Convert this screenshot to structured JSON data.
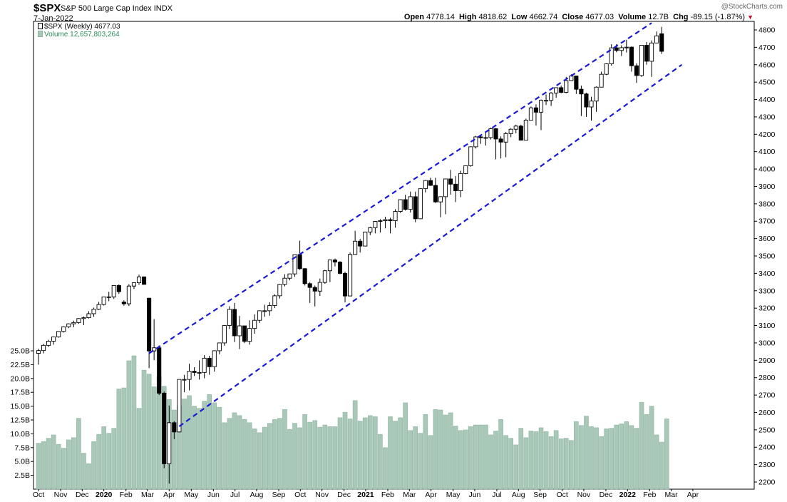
{
  "header": {
    "symbol": "$SPX",
    "name": "S&P 500 Large Cap Index",
    "exchange": "INDX",
    "date": "7-Jan-2022",
    "watermark": "@StockCharts.com",
    "open_label": "Open",
    "open_value": "4778.14",
    "high_label": "High",
    "high_value": "4818.62",
    "low_label": "Low",
    "low_value": "4662.74",
    "close_label": "Close",
    "close_value": "4677.03",
    "volume_label": "Volume",
    "volume_value": "12.7B",
    "chg_label": "Chg",
    "chg_value": "-89.15 (-1.87%)",
    "chg_arrow": "▼"
  },
  "legend": {
    "price_line": "$SPX (Weekly) 4677.03",
    "volume_line": "Volume 12,657,803,264"
  },
  "chart_data": {
    "type": "candlestick",
    "timeframe": "weekly",
    "price_axis": {
      "side": "right",
      "ylim": [
        2180,
        4840
      ],
      "ticks": [
        2200,
        2300,
        2400,
        2500,
        2600,
        2700,
        2800,
        2900,
        3000,
        3100,
        3200,
        3300,
        3400,
        3500,
        3600,
        3700,
        3800,
        3900,
        4000,
        4100,
        4200,
        4300,
        4400,
        4500,
        4600,
        4700,
        4800
      ]
    },
    "volume_axis": {
      "side": "left",
      "ylim": [
        0,
        26.5
      ],
      "ticks": [
        "2.5B",
        "5.0B",
        "7.5B",
        "10.0B",
        "12.5B",
        "15.0B",
        "17.5B",
        "20.0B",
        "22.5B",
        "25.0B"
      ],
      "tick_values": [
        2.5,
        5,
        7.5,
        10,
        12.5,
        15,
        17.5,
        20,
        22.5,
        25
      ]
    },
    "x_axis": {
      "labels": [
        "Oct",
        "Nov",
        "Dec",
        "2020",
        "Feb",
        "Mar",
        "Apr",
        "May",
        "Jun",
        "Jul",
        "Aug",
        "Sep",
        "Oct",
        "Nov",
        "Dec",
        "2021",
        "Feb",
        "Mar",
        "Apr",
        "May",
        "Jun",
        "Jul",
        "Aug",
        "Sep",
        "Oct",
        "Nov",
        "Dec",
        "2022",
        "Feb",
        "Mar",
        "Apr"
      ],
      "label_week_index": [
        0,
        4.4,
        8.7,
        13,
        17.4,
        21.7,
        26,
        30.4,
        34.8,
        39.1,
        43.4,
        47.8,
        52.1,
        56.4,
        60.8,
        65.1,
        69.5,
        73.8,
        78.1,
        82.5,
        86.8,
        91.2,
        95.5,
        99.8,
        104.2,
        108.5,
        112.9,
        117.2,
        121.6,
        125.9,
        130.2
      ],
      "bold": [
        "2020",
        "2021",
        "2022"
      ]
    },
    "candles": [
      {
        "o": 2940,
        "h": 2967,
        "l": 2875,
        "c": 2956
      },
      {
        "o": 2956,
        "h": 2995,
        "l": 2940,
        "c": 2986
      },
      {
        "o": 2986,
        "h": 3018,
        "l": 2977,
        "c": 3010
      },
      {
        "o": 3010,
        "h": 3037,
        "l": 2990,
        "c": 3035
      },
      {
        "o": 3035,
        "h": 3066,
        "l": 3030,
        "c": 3066
      },
      {
        "o": 3066,
        "h": 3096,
        "l": 3060,
        "c": 3093
      },
      {
        "o": 3093,
        "h": 3112,
        "l": 3085,
        "c": 3110
      },
      {
        "o": 3110,
        "h": 3128,
        "l": 3090,
        "c": 3117
      },
      {
        "o": 3117,
        "h": 3142,
        "l": 3110,
        "c": 3140
      },
      {
        "o": 3140,
        "h": 3152,
        "l": 3102,
        "c": 3145
      },
      {
        "o": 3145,
        "h": 3182,
        "l": 3140,
        "c": 3168
      },
      {
        "o": 3168,
        "h": 3203,
        "l": 3150,
        "c": 3194
      },
      {
        "o": 3194,
        "h": 3236,
        "l": 3190,
        "c": 3221
      },
      {
        "o": 3221,
        "h": 3266,
        "l": 3215,
        "c": 3265
      },
      {
        "o": 3265,
        "h": 3294,
        "l": 3240,
        "c": 3265
      },
      {
        "o": 3265,
        "h": 3330,
        "l": 3253,
        "c": 3330
      },
      {
        "o": 3330,
        "h": 3337,
        "l": 3282,
        "c": 3295
      },
      {
        "o": 3235,
        "h": 3245,
        "l": 3214,
        "c": 3225
      },
      {
        "o": 3225,
        "h": 3338,
        "l": 3212,
        "c": 3327
      },
      {
        "o": 3327,
        "h": 3348,
        "l": 3310,
        "c": 3346
      },
      {
        "o": 3346,
        "h": 3393,
        "l": 3334,
        "c": 3380
      },
      {
        "o": 3380,
        "h": 3382,
        "l": 3335,
        "c": 3337
      },
      {
        "o": 3257,
        "h": 3260,
        "l": 2855,
        "c": 2954
      },
      {
        "o": 2954,
        "h": 3137,
        "l": 2901,
        "c": 2972
      },
      {
        "o": 2972,
        "h": 2985,
        "l": 2700,
        "c": 2711
      },
      {
        "o": 2711,
        "h": 2720,
        "l": 2280,
        "c": 2305
      },
      {
        "o": 2305,
        "h": 2640,
        "l": 2191,
        "c": 2541
      },
      {
        "o": 2541,
        "h": 2550,
        "l": 2447,
        "c": 2488
      },
      {
        "o": 2488,
        "h": 2790,
        "l": 2485,
        "c": 2790
      },
      {
        "o": 2790,
        "h": 2816,
        "l": 2717,
        "c": 2790
      },
      {
        "o": 2790,
        "h": 2880,
        "l": 2727,
        "c": 2837
      },
      {
        "o": 2837,
        "h": 2860,
        "l": 2810,
        "c": 2830
      },
      {
        "o": 2830,
        "h": 2900,
        "l": 2789,
        "c": 2830
      },
      {
        "o": 2830,
        "h": 2930,
        "l": 2797,
        "c": 2912
      },
      {
        "o": 2912,
        "h": 2926,
        "l": 2817,
        "c": 2863
      },
      {
        "o": 2863,
        "h": 2955,
        "l": 2835,
        "c": 2955
      },
      {
        "o": 2955,
        "h": 3000,
        "l": 2935,
        "c": 3000
      },
      {
        "o": 3000,
        "h": 3100,
        "l": 2984,
        "c": 3100
      },
      {
        "o": 3100,
        "h": 3211,
        "l": 3080,
        "c": 3193
      },
      {
        "o": 3193,
        "h": 3230,
        "l": 3005,
        "c": 3041
      },
      {
        "o": 3041,
        "h": 3155,
        "l": 2965,
        "c": 3098
      },
      {
        "o": 3098,
        "h": 3099,
        "l": 2999,
        "c": 3009
      },
      {
        "o": 3009,
        "h": 3130,
        "l": 2990,
        "c": 3083
      },
      {
        "o": 3083,
        "h": 3165,
        "l": 3053,
        "c": 3130
      },
      {
        "o": 3130,
        "h": 3186,
        "l": 3115,
        "c": 3185
      },
      {
        "o": 3185,
        "h": 3220,
        "l": 3150,
        "c": 3185
      },
      {
        "o": 3185,
        "h": 3234,
        "l": 3156,
        "c": 3215
      },
      {
        "o": 3215,
        "h": 3280,
        "l": 3200,
        "c": 3271
      },
      {
        "o": 3271,
        "h": 3340,
        "l": 3255,
        "c": 3337
      },
      {
        "o": 3337,
        "h": 3395,
        "l": 3325,
        "c": 3372
      },
      {
        "o": 3372,
        "h": 3398,
        "l": 3360,
        "c": 3397
      },
      {
        "o": 3397,
        "h": 3500,
        "l": 3380,
        "c": 3508
      },
      {
        "o": 3508,
        "h": 3588,
        "l": 3420,
        "c": 3427
      },
      {
        "o": 3427,
        "h": 3430,
        "l": 3330,
        "c": 3341
      },
      {
        "o": 3341,
        "h": 3350,
        "l": 3230,
        "c": 3319
      },
      {
        "o": 3319,
        "h": 3330,
        "l": 3210,
        "c": 3298
      },
      {
        "o": 3298,
        "h": 3370,
        "l": 3270,
        "c": 3348
      },
      {
        "o": 3348,
        "h": 3420,
        "l": 3340,
        "c": 3415
      },
      {
        "o": 3415,
        "h": 3480,
        "l": 3350,
        "c": 3477
      },
      {
        "o": 3477,
        "h": 3485,
        "l": 3440,
        "c": 3465
      },
      {
        "o": 3465,
        "h": 3470,
        "l": 3395,
        "c": 3400
      },
      {
        "o": 3400,
        "h": 3410,
        "l": 3233,
        "c": 3270
      },
      {
        "o": 3270,
        "h": 3520,
        "l": 3270,
        "c": 3509
      },
      {
        "o": 3509,
        "h": 3645,
        "l": 3510,
        "c": 3585
      },
      {
        "o": 3585,
        "h": 3598,
        "l": 3520,
        "c": 3557
      },
      {
        "o": 3557,
        "h": 3640,
        "l": 3560,
        "c": 3638
      },
      {
        "o": 3638,
        "h": 3668,
        "l": 3620,
        "c": 3663
      },
      {
        "o": 3663,
        "h": 3699,
        "l": 3630,
        "c": 3699
      },
      {
        "o": 3699,
        "h": 3712,
        "l": 3635,
        "c": 3703
      },
      {
        "o": 3703,
        "h": 3726,
        "l": 3659,
        "c": 3709
      },
      {
        "o": 3709,
        "h": 3720,
        "l": 3630,
        "c": 3703
      },
      {
        "o": 3703,
        "h": 3769,
        "l": 3663,
        "c": 3756
      },
      {
        "o": 3756,
        "h": 3826,
        "l": 3748,
        "c": 3824
      },
      {
        "o": 3824,
        "h": 3852,
        "l": 3761,
        "c": 3768
      },
      {
        "o": 3768,
        "h": 3870,
        "l": 3750,
        "c": 3841
      },
      {
        "o": 3841,
        "h": 3870,
        "l": 3694,
        "c": 3714
      },
      {
        "o": 3714,
        "h": 3887,
        "l": 3714,
        "c": 3887
      },
      {
        "o": 3887,
        "h": 3937,
        "l": 3866,
        "c": 3934
      },
      {
        "o": 3934,
        "h": 3950,
        "l": 3903,
        "c": 3906
      },
      {
        "o": 3906,
        "h": 3950,
        "l": 3805,
        "c": 3811
      },
      {
        "o": 3811,
        "h": 3820,
        "l": 3723,
        "c": 3841
      },
      {
        "o": 3841,
        "h": 3940,
        "l": 3740,
        "c": 3943
      },
      {
        "o": 3943,
        "h": 3995,
        "l": 3853,
        "c": 3913
      },
      {
        "o": 3913,
        "h": 3960,
        "l": 3810,
        "c": 3875
      },
      {
        "o": 3875,
        "h": 3990,
        "l": 3838,
        "c": 3974
      },
      {
        "o": 3974,
        "h": 4020,
        "l": 3970,
        "c": 4019
      },
      {
        "o": 4019,
        "h": 4130,
        "l": 4013,
        "c": 4128
      },
      {
        "o": 4128,
        "h": 4191,
        "l": 4118,
        "c": 4185
      },
      {
        "o": 4185,
        "h": 4194,
        "l": 4145,
        "c": 4180
      },
      {
        "o": 4180,
        "h": 4218,
        "l": 4135,
        "c": 4181
      },
      {
        "o": 4181,
        "h": 4238,
        "l": 4170,
        "c": 4232
      },
      {
        "o": 4232,
        "h": 4236,
        "l": 4056,
        "c": 4173
      },
      {
        "o": 4173,
        "h": 4188,
        "l": 4061,
        "c": 4155
      },
      {
        "o": 4155,
        "h": 4213,
        "l": 4068,
        "c": 4204
      },
      {
        "o": 4204,
        "h": 4234,
        "l": 4183,
        "c": 4229
      },
      {
        "o": 4229,
        "h": 4255,
        "l": 4206,
        "c": 4247
      },
      {
        "o": 4247,
        "h": 4255,
        "l": 4164,
        "c": 4166
      },
      {
        "o": 4166,
        "h": 4290,
        "l": 4165,
        "c": 4281
      },
      {
        "o": 4281,
        "h": 4360,
        "l": 4285,
        "c": 4352
      },
      {
        "o": 4352,
        "h": 4372,
        "l": 4250,
        "c": 4327
      },
      {
        "o": 4327,
        "h": 4400,
        "l": 4224,
        "c": 4395
      },
      {
        "o": 4395,
        "h": 4429,
        "l": 4368,
        "c": 4395
      },
      {
        "o": 4395,
        "h": 4443,
        "l": 4363,
        "c": 4437
      },
      {
        "o": 4437,
        "h": 4450,
        "l": 4410,
        "c": 4468
      },
      {
        "o": 4468,
        "h": 4480,
        "l": 4436,
        "c": 4441
      },
      {
        "o": 4441,
        "h": 4530,
        "l": 4436,
        "c": 4509
      },
      {
        "o": 4509,
        "h": 4545,
        "l": 4510,
        "c": 4535
      },
      {
        "o": 4535,
        "h": 4536,
        "l": 4432,
        "c": 4459
      },
      {
        "o": 4459,
        "h": 4480,
        "l": 4305,
        "c": 4432
      },
      {
        "o": 4432,
        "h": 4439,
        "l": 4300,
        "c": 4357
      },
      {
        "o": 4357,
        "h": 4416,
        "l": 4278,
        "c": 4391
      },
      {
        "o": 4391,
        "h": 4475,
        "l": 4329,
        "c": 4471
      },
      {
        "o": 4471,
        "h": 4560,
        "l": 4470,
        "c": 4545
      },
      {
        "o": 4545,
        "h": 4608,
        "l": 4540,
        "c": 4605
      },
      {
        "o": 4605,
        "h": 4718,
        "l": 4595,
        "c": 4697
      },
      {
        "o": 4697,
        "h": 4718,
        "l": 4672,
        "c": 4682
      },
      {
        "o": 4682,
        "h": 4712,
        "l": 4650,
        "c": 4698
      },
      {
        "o": 4698,
        "h": 4744,
        "l": 4670,
        "c": 4701
      },
      {
        "o": 4701,
        "h": 4705,
        "l": 4560,
        "c": 4594
      },
      {
        "o": 4594,
        "h": 4608,
        "l": 4495,
        "c": 4538
      },
      {
        "o": 4538,
        "h": 4713,
        "l": 4530,
        "c": 4712
      },
      {
        "o": 4712,
        "h": 4731,
        "l": 4600,
        "c": 4620
      },
      {
        "o": 4620,
        "h": 4740,
        "l": 4530,
        "c": 4725
      },
      {
        "o": 4725,
        "h": 4791,
        "l": 4728,
        "c": 4766
      },
      {
        "o": 4778,
        "h": 4818,
        "l": 4662,
        "c": 4677
      }
    ],
    "volume": [
      8.3,
      8.6,
      9.2,
      9.8,
      8.1,
      7.4,
      8.9,
      9.3,
      12.8,
      6.5,
      4.6,
      8.6,
      9.9,
      11.3,
      10.1,
      11.0,
      18.1,
      18.3,
      23.2,
      24.1,
      14.6,
      21.5,
      20.8,
      18.5,
      20.4,
      18.6,
      16.2,
      14.3,
      15.1,
      16.3,
      16.9,
      15.0,
      14.6,
      15.9,
      17.1,
      15.6,
      14.8,
      12.0,
      12.8,
      13.8,
      13.3,
      12.6,
      12.0,
      10.9,
      10.2,
      11.2,
      11.9,
      12.6,
      12.8,
      14.4,
      10.8,
      11.9,
      11.1,
      13.5,
      12.1,
      12.4,
      11.2,
      11.6,
      11.3,
      11.3,
      12.9,
      13.9,
      12.7,
      16.0,
      12.3,
      12.9,
      13.3,
      13.1,
      9.9,
      7.5,
      13.1,
      12.3,
      12.9,
      15.6,
      10.6,
      11.3,
      10.1,
      13.5,
      9.7,
      14.4,
      14.3,
      13.4,
      13.8,
      11.4,
      10.6,
      10.7,
      11.3,
      11.6,
      11.6,
      11.6,
      9.8,
      10.5,
      12.6,
      9.7,
      9.2,
      8.0,
      11.0,
      9.3,
      10.5,
      10.4,
      11.1,
      10.4,
      9.5,
      10.6,
      9.1,
      9.2,
      8.8,
      12.2,
      11.5,
      13.2,
      11.3,
      11.1,
      9.5,
      10.9,
      11.0,
      11.6,
      11.8,
      12.2,
      11.5,
      11.0,
      15.7,
      13.5,
      15.0,
      9.8,
      8.5,
      12.7
    ]
  },
  "channel": {
    "color": "#1a1ad6",
    "upper": [
      [
        22,
        2940
      ],
      [
        122,
        4840
      ]
    ],
    "lower": [
      [
        28,
        2520
      ],
      [
        128,
        4600
      ]
    ]
  },
  "colors": {
    "volume_bar": "#a8c8b8",
    "volume_bar_edge": "#8fb1a0",
    "candle_edge": "#000000",
    "up_fill": "#ffffff",
    "down_fill": "#000000",
    "grid": "#e6e6e6"
  }
}
